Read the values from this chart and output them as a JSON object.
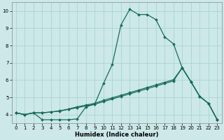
{
  "xlabel": "Humidex (Indice chaleur)",
  "ylabel": "",
  "bg_color": "#cce8e8",
  "grid_color": "#aad4d4",
  "line_color": "#1a6b5a",
  "xlim": [
    -0.5,
    23.5
  ],
  "ylim": [
    3.5,
    10.5
  ],
  "xticks": [
    0,
    1,
    2,
    3,
    4,
    5,
    6,
    7,
    8,
    9,
    10,
    11,
    12,
    13,
    14,
    15,
    16,
    17,
    18,
    19,
    20,
    21,
    22,
    23
  ],
  "yticks": [
    4,
    5,
    6,
    7,
    8,
    9,
    10
  ],
  "curve1_x": [
    0,
    1,
    2,
    3,
    4,
    5,
    6,
    7,
    8,
    9,
    10,
    11,
    12,
    13,
    14,
    15,
    16,
    17,
    18,
    19,
    20,
    21,
    22,
    23
  ],
  "curve1_y": [
    4.1,
    4.0,
    4.1,
    3.7,
    3.7,
    3.7,
    3.7,
    3.75,
    4.45,
    4.6,
    5.8,
    6.9,
    9.2,
    10.1,
    9.8,
    9.8,
    9.5,
    8.5,
    8.1,
    6.7,
    5.9,
    5.05,
    4.65,
    3.7
  ],
  "curve2_x": [
    0,
    1,
    2,
    3,
    4,
    5,
    6,
    7,
    8,
    9,
    10,
    11,
    12,
    13,
    14,
    15,
    16,
    17,
    18,
    19,
    20,
    21,
    22,
    23
  ],
  "curve2_y": [
    4.1,
    4.0,
    4.1,
    4.1,
    4.15,
    4.2,
    4.3,
    4.4,
    4.5,
    4.6,
    4.75,
    4.9,
    5.05,
    5.2,
    5.35,
    5.5,
    5.65,
    5.8,
    5.95,
    6.7,
    5.9,
    5.05,
    4.65,
    3.7
  ],
  "curve3_x": [
    0,
    1,
    2,
    3,
    4,
    5,
    6,
    7,
    8,
    9,
    10,
    11,
    12,
    13,
    14,
    15,
    16,
    17,
    18,
    19,
    20,
    21,
    22,
    23
  ],
  "curve3_y": [
    4.1,
    4.0,
    4.1,
    4.1,
    4.15,
    4.22,
    4.32,
    4.45,
    4.55,
    4.65,
    4.82,
    4.97,
    5.12,
    5.27,
    5.42,
    5.57,
    5.72,
    5.87,
    6.02,
    6.72,
    5.9,
    5.05,
    4.65,
    3.7
  ]
}
